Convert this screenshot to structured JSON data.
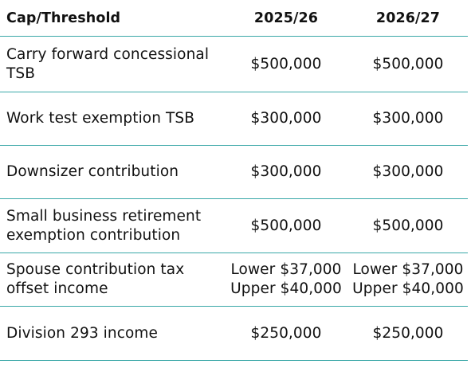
{
  "columns": [
    "Cap/Threshold",
    "2025/26",
    "2026/27"
  ],
  "rows": [
    {
      "label_lines": [
        "Carry forward concessional",
        "TSB"
      ],
      "y2025": [
        "$500,000"
      ],
      "y2026": [
        "$500,000"
      ]
    },
    {
      "label_lines": [
        "Work test exemption TSB"
      ],
      "y2025": [
        "$300,000"
      ],
      "y2026": [
        "$300,000"
      ]
    },
    {
      "label_lines": [
        "Downsizer contribution"
      ],
      "y2025": [
        "$300,000"
      ],
      "y2026": [
        "$300,000"
      ]
    },
    {
      "label_lines": [
        "Small business retirement",
        "exemption contribution"
      ],
      "y2025": [
        "$500,000"
      ],
      "y2026": [
        "$500,000"
      ]
    },
    {
      "label_lines": [
        "Spouse contribution tax",
        "offset income"
      ],
      "y2025": [
        "Lower $37,000",
        "Upper $40,000"
      ],
      "y2026": [
        "Lower $37,000",
        "Upper $40,000"
      ]
    },
    {
      "label_lines": [
        "Division 293 income"
      ],
      "y2025": [
        "$250,000"
      ],
      "y2026": [
        "$250,000"
      ]
    }
  ],
  "colors": {
    "divider": "#3aa8a8",
    "text": "#111111"
  }
}
